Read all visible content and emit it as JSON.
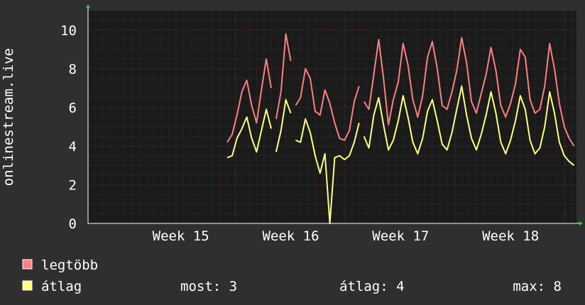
{
  "chart_data": {
    "type": "line",
    "ylabel": "onlinestream.live",
    "ylim": [
      0,
      11
    ],
    "yticks": [
      0,
      2,
      4,
      6,
      8,
      10
    ],
    "xlim": [
      0,
      100
    ],
    "week_ticks": [
      {
        "label": "Week 15",
        "x": 19.0
      },
      {
        "label": "Week 16",
        "x": 41.5
      },
      {
        "label": "Week 17",
        "x": 64.0
      },
      {
        "label": "Week 18",
        "x": 86.5
      }
    ],
    "grid": true,
    "series": [
      {
        "name": "legtöbb",
        "color": "#ff7f7f",
        "x": [
          28.5,
          29.5,
          30.5,
          31.5,
          32.5,
          33.5,
          34.5,
          35.5,
          36.5,
          37.5,
          38.5,
          39.5,
          40.5,
          41.5,
          42.5,
          43.5,
          44.5,
          45.5,
          46.5,
          47.5,
          48.5,
          49.5,
          50.5,
          51.5,
          52.5,
          53.5,
          54.5,
          55.5,
          56.5,
          57.5,
          58.5,
          59.5,
          60.5,
          61.5,
          62.5,
          63.5,
          64.5,
          65.5,
          66.5,
          67.5,
          68.5,
          69.5,
          70.5,
          71.5,
          72.5,
          73.5,
          74.5,
          75.5,
          76.5,
          77.5,
          78.5,
          79.5,
          80.5,
          81.5,
          82.5,
          83.5,
          84.5,
          85.5,
          86.5,
          87.5,
          88.5,
          89.5,
          90.5,
          91.5,
          92.5,
          93.5,
          94.5,
          95.5,
          96.5,
          97.5,
          98.5,
          99.5
        ],
        "values": [
          4.2,
          4.6,
          5.6,
          6.8,
          7.4,
          6.1,
          5.2,
          6.9,
          8.5,
          7.0,
          5.4,
          6.8,
          9.8,
          8.4,
          6.1,
          6.5,
          8.0,
          7.5,
          5.8,
          5.6,
          6.9,
          6.2,
          5.2,
          4.4,
          4.3,
          4.8,
          6.3,
          7.1,
          6.3,
          5.9,
          7.7,
          9.5,
          7.5,
          5.1,
          6.4,
          7.3,
          9.3,
          8.2,
          6.4,
          5.5,
          6.6,
          8.6,
          9.4,
          8.0,
          6.1,
          5.9,
          6.8,
          7.9,
          9.6,
          8.3,
          6.3,
          5.7,
          6.7,
          7.7,
          9.1,
          7.9,
          6.1,
          5.5,
          6.2,
          7.2,
          9.0,
          8.6,
          6.4,
          5.7,
          5.9,
          7.1,
          9.3,
          8.0,
          6.2,
          5.0,
          4.4,
          4.0
        ],
        "gaps_after": [
          9,
          13,
          27
        ]
      },
      {
        "name": "átlag",
        "color": "#ffff80",
        "x": [
          28.5,
          29.5,
          30.5,
          31.5,
          32.5,
          33.5,
          34.5,
          35.5,
          36.5,
          37.5,
          38.5,
          39.5,
          40.5,
          41.5,
          42.5,
          43.5,
          44.5,
          45.5,
          46.5,
          47.5,
          48.5,
          49.5,
          50.5,
          51.5,
          52.5,
          53.5,
          54.5,
          55.5,
          56.5,
          57.5,
          58.5,
          59.5,
          60.5,
          61.5,
          62.5,
          63.5,
          64.5,
          65.5,
          66.5,
          67.5,
          68.5,
          69.5,
          70.5,
          71.5,
          72.5,
          73.5,
          74.5,
          75.5,
          76.5,
          77.5,
          78.5,
          79.5,
          80.5,
          81.5,
          82.5,
          83.5,
          84.5,
          85.5,
          86.5,
          87.5,
          88.5,
          89.5,
          90.5,
          91.5,
          92.5,
          93.5,
          94.5,
          95.5,
          96.5,
          97.5,
          98.5,
          99.5
        ],
        "values": [
          3.4,
          3.5,
          4.4,
          4.9,
          5.5,
          4.4,
          3.7,
          4.8,
          5.9,
          4.9,
          3.7,
          4.8,
          6.4,
          5.7,
          4.3,
          4.2,
          5.4,
          4.7,
          3.5,
          2.6,
          3.6,
          0.0,
          3.4,
          3.5,
          3.3,
          3.5,
          4.2,
          5.2,
          4.5,
          3.9,
          5.6,
          6.5,
          5.1,
          3.8,
          4.3,
          5.3,
          6.6,
          5.5,
          4.2,
          3.6,
          4.4,
          5.8,
          6.4,
          5.3,
          4.1,
          3.8,
          4.7,
          5.9,
          7.1,
          5.6,
          4.4,
          3.8,
          4.6,
          5.6,
          6.8,
          5.7,
          4.2,
          3.6,
          4.3,
          5.3,
          6.6,
          5.9,
          4.3,
          3.6,
          3.9,
          5.0,
          6.8,
          5.7,
          4.2,
          3.5,
          3.2,
          3.0
        ],
        "gaps_after": [
          9,
          13,
          27
        ]
      }
    ],
    "legend_placement": "bottom-left",
    "legend": [
      {
        "label": "legtöbb",
        "color": "#ff7f7f"
      },
      {
        "label": "átlag",
        "color": "#ffff80"
      }
    ],
    "stats": {
      "most": "most: 3",
      "atlag": "átlag: 4",
      "max": "max: 8"
    }
  }
}
